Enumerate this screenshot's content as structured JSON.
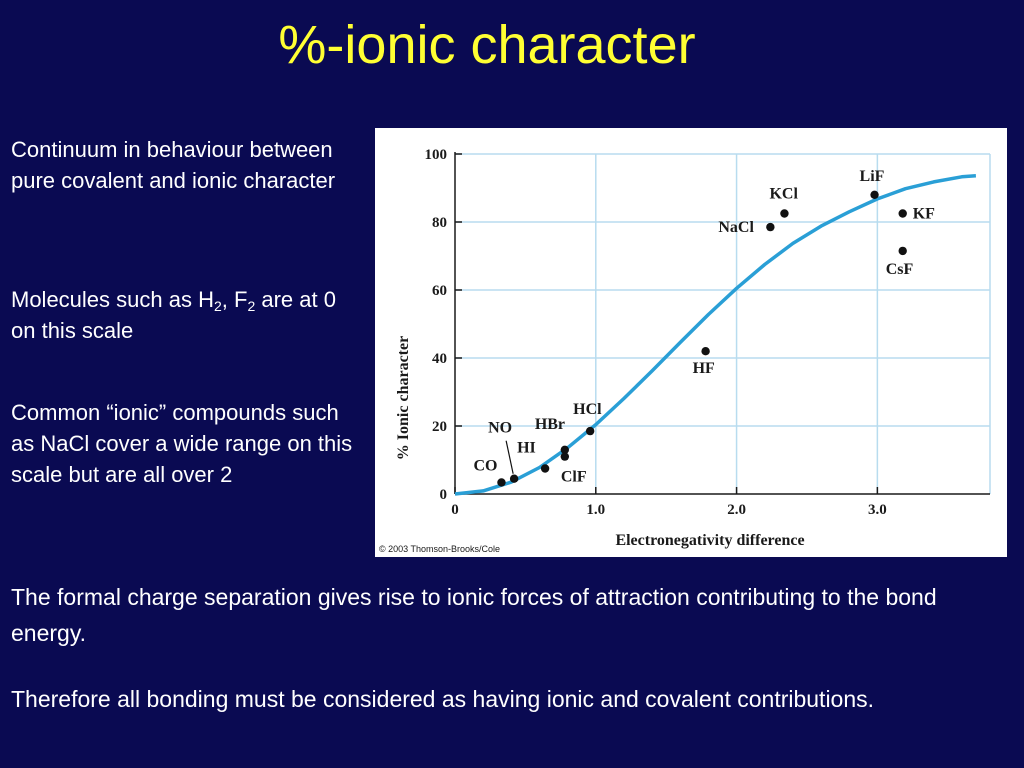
{
  "slide": {
    "title": "%-ionic character",
    "p1": "Continuum in behaviour between pure covalent and ionic character",
    "p2_pre": "Molecules such as H",
    "p2_sub1": "2",
    "p2_mid": ", F",
    "p2_sub2": "2",
    "p2_post": " are at 0 on this scale",
    "p3": "Common “ionic” compounds such as NaCl cover a wide range on this scale but are all over 2",
    "p4": "The formal charge separation gives rise to ionic forces of attraction contributing to the bond energy.",
    "p5": "Therefore all bonding must be  considered as having ionic and covalent contributions."
  },
  "chart_data": {
    "type": "scatter",
    "xlabel": "Electronegativity difference",
    "ylabel": "% Ionic character",
    "xlim": [
      0,
      3.8
    ],
    "ylim": [
      0,
      100
    ],
    "xticks": [
      0,
      1.0,
      2.0,
      3.0
    ],
    "xtick_labels": [
      "0",
      "1.0",
      "2.0",
      "3.0"
    ],
    "yticks": [
      0,
      20,
      40,
      60,
      80,
      100
    ],
    "ytick_labels": [
      "0",
      "20",
      "40",
      "60",
      "80",
      "100"
    ],
    "grid": true,
    "points": [
      {
        "label": "CO",
        "x": 0.33,
        "y": 3.4
      },
      {
        "label": "NO",
        "x": 0.42,
        "y": 4.5
      },
      {
        "label": "HI",
        "x": 0.64,
        "y": 7.5
      },
      {
        "label": "ClF",
        "x": 0.78,
        "y": 11
      },
      {
        "label": "HBr",
        "x": 0.78,
        "y": 13
      },
      {
        "label": "HCl",
        "x": 0.96,
        "y": 18.5
      },
      {
        "label": "HF",
        "x": 1.78,
        "y": 42
      },
      {
        "label": "NaCl",
        "x": 2.24,
        "y": 78.5
      },
      {
        "label": "KCl",
        "x": 2.34,
        "y": 82.5
      },
      {
        "label": "LiF",
        "x": 2.98,
        "y": 88
      },
      {
        "label": "KF",
        "x": 3.18,
        "y": 82.5
      },
      {
        "label": "CsF",
        "x": 3.18,
        "y": 71.5
      }
    ],
    "curve": {
      "x": [
        0,
        0.2,
        0.4,
        0.6,
        0.8,
        1.0,
        1.2,
        1.4,
        1.6,
        1.8,
        2.0,
        2.2,
        2.4,
        2.6,
        2.8,
        3.0,
        3.2,
        3.4,
        3.6,
        3.7
      ],
      "y": [
        0,
        0.9,
        3.5,
        7.8,
        13.6,
        20.4,
        28.1,
        36.2,
        44.6,
        52.8,
        60.5,
        67.5,
        73.7,
        78.8,
        83.0,
        86.8,
        89.8,
        91.8,
        93.3,
        93.6
      ]
    },
    "line_color": "#2a9fd6",
    "grid_color": "#b8dcef",
    "copyright": "© 2003 Thomson-Brooks/Cole"
  }
}
